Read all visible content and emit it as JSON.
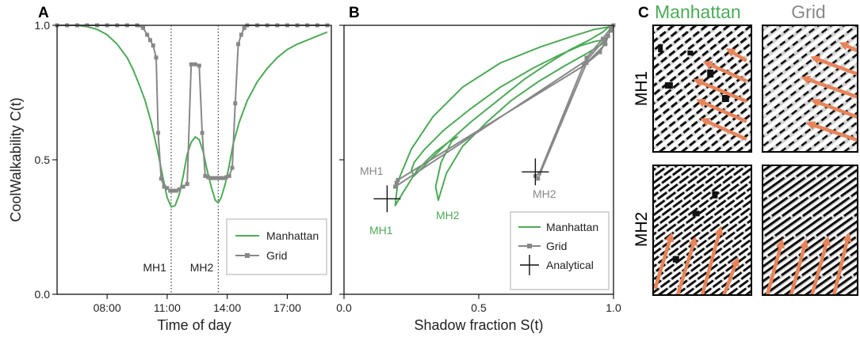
{
  "panels": {
    "a": "A",
    "b": "B",
    "c": "C"
  },
  "colors": {
    "manhattan": "#4daa57",
    "grid": "#888888",
    "analytical": "#111111",
    "arrow": "#e8845a",
    "street": "#d2d2d2",
    "building": "#111111"
  },
  "chart_data": [
    {
      "id": "A",
      "type": "line",
      "xlabel": "Time of day",
      "ylabel": "CoolWalkability C(t)",
      "xlim": [
        5.5,
        19.2
      ],
      "ylim": [
        0.0,
        1.0
      ],
      "xticks": [
        8,
        11,
        14,
        17
      ],
      "xtick_labels": [
        "08:00",
        "11:00",
        "14:00",
        "17:00"
      ],
      "yticks": [
        0.0,
        0.5,
        1.0
      ],
      "ytick_labels": [
        "0.0",
        "0.5",
        "1.0"
      ],
      "vlines": [
        {
          "x": 11.2,
          "label": "MH1"
        },
        {
          "x": 13.55,
          "label": "MH2"
        }
      ],
      "legend": {
        "position": "lower-right",
        "entries": [
          "Manhattan",
          "Grid"
        ]
      },
      "series": [
        {
          "name": "Manhattan",
          "marker": "none",
          "x": [
            5.5,
            6.0,
            6.5,
            7.0,
            7.5,
            8.0,
            8.5,
            9.0,
            9.3,
            9.6,
            9.9,
            10.2,
            10.5,
            10.8,
            11.0,
            11.2,
            11.4,
            11.6,
            11.8,
            12.0,
            12.2,
            12.4,
            12.6,
            12.8,
            13.0,
            13.2,
            13.4,
            13.55,
            13.7,
            13.9,
            14.1,
            14.3,
            14.6,
            15.0,
            15.5,
            16.0,
            16.5,
            17.0,
            17.5,
            18.0,
            18.5,
            19.0
          ],
          "y": [
            1.0,
            1.0,
            1.0,
            0.995,
            0.985,
            0.965,
            0.93,
            0.88,
            0.835,
            0.78,
            0.72,
            0.64,
            0.54,
            0.43,
            0.36,
            0.325,
            0.33,
            0.37,
            0.44,
            0.52,
            0.565,
            0.585,
            0.575,
            0.53,
            0.46,
            0.4,
            0.35,
            0.34,
            0.36,
            0.41,
            0.48,
            0.56,
            0.64,
            0.72,
            0.79,
            0.84,
            0.88,
            0.91,
            0.93,
            0.945,
            0.96,
            0.975
          ]
        },
        {
          "name": "Grid",
          "marker": "square",
          "x": [
            5.5,
            6.0,
            6.5,
            7.0,
            7.5,
            8.0,
            8.5,
            9.0,
            9.5,
            9.8,
            10.0,
            10.15,
            10.3,
            10.45,
            10.55,
            10.7,
            10.85,
            11.0,
            11.15,
            11.3,
            11.45,
            11.6,
            11.8,
            12.0,
            12.2,
            12.4,
            12.6,
            12.75,
            12.9,
            13.05,
            13.2,
            13.35,
            13.5,
            13.65,
            13.8,
            13.95,
            14.1,
            14.25,
            14.4,
            14.55,
            14.7,
            14.85,
            15.0,
            15.5,
            16.0,
            16.5,
            17.0,
            17.5,
            18.0,
            18.5,
            19.0
          ],
          "y": [
            1.0,
            1.0,
            1.0,
            1.0,
            1.0,
            1.0,
            1.0,
            1.0,
            1.0,
            0.99,
            0.965,
            0.945,
            0.925,
            0.88,
            0.6,
            0.43,
            0.4,
            0.395,
            0.385,
            0.385,
            0.385,
            0.39,
            0.4,
            0.41,
            0.855,
            0.855,
            0.85,
            0.6,
            0.44,
            0.435,
            0.432,
            0.432,
            0.432,
            0.432,
            0.432,
            0.435,
            0.44,
            0.47,
            0.71,
            0.93,
            0.965,
            0.99,
            1.0,
            1.0,
            1.0,
            1.0,
            1.0,
            1.0,
            1.0,
            1.0,
            1.0
          ]
        }
      ]
    },
    {
      "id": "B",
      "type": "line",
      "xlabel": "Shadow fraction S(t)",
      "ylabel": "",
      "xlim": [
        0.0,
        1.0
      ],
      "ylim": [
        0.0,
        1.0
      ],
      "xticks": [
        0.0,
        0.5,
        1.0
      ],
      "xtick_labels": [
        "0.0",
        "0.5",
        "1.0"
      ],
      "yticks": [
        0.0,
        0.5,
        1.0
      ],
      "legend": {
        "position": "lower-right",
        "entries": [
          "Manhattan",
          "Grid",
          "Analytical"
        ]
      },
      "annotations": [
        {
          "text": "MH1",
          "series": "Grid"
        },
        {
          "text": "MH1",
          "series": "Manhattan"
        },
        {
          "text": "MH2",
          "series": "Manhattan"
        },
        {
          "text": "MH2",
          "series": "Grid"
        }
      ],
      "series": [
        {
          "name": "Manhattan",
          "marker": "none",
          "x": [
            0.99,
            0.93,
            0.85,
            0.73,
            0.58,
            0.44,
            0.33,
            0.25,
            0.2,
            0.19,
            0.22,
            0.27,
            0.34,
            0.4,
            0.42,
            0.4,
            0.36,
            0.34,
            0.35,
            0.38,
            0.44,
            0.53,
            0.62,
            0.72,
            0.82,
            0.9,
            0.95,
            0.97,
            0.96,
            0.93,
            0.88,
            0.8,
            0.7,
            0.58,
            0.47,
            0.37,
            0.3,
            0.26,
            0.25,
            0.26,
            0.3,
            0.37,
            0.47,
            0.57,
            0.67,
            0.76,
            0.84,
            0.91,
            0.96,
            0.99
          ],
          "y": [
            0.995,
            0.985,
            0.96,
            0.92,
            0.86,
            0.77,
            0.66,
            0.54,
            0.42,
            0.33,
            0.38,
            0.46,
            0.53,
            0.575,
            0.585,
            0.57,
            0.49,
            0.4,
            0.35,
            0.45,
            0.55,
            0.64,
            0.72,
            0.79,
            0.85,
            0.895,
            0.925,
            0.94,
            0.945,
            0.94,
            0.925,
            0.89,
            0.84,
            0.77,
            0.69,
            0.61,
            0.54,
            0.49,
            0.46,
            0.44,
            0.48,
            0.55,
            0.64,
            0.72,
            0.8,
            0.86,
            0.91,
            0.945,
            0.975,
            1.0
          ]
        },
        {
          "name": "Grid",
          "marker": "square",
          "x": [
            1.0,
            0.99,
            0.97,
            0.9,
            0.19,
            0.195,
            0.2,
            0.89,
            0.95,
            0.98,
            0.97,
            0.9,
            0.72,
            0.71,
            0.725,
            0.9,
            0.96,
            0.99,
            1.0
          ],
          "y": [
            1.0,
            0.98,
            0.95,
            0.87,
            0.4,
            0.415,
            0.425,
            0.85,
            0.9,
            0.96,
            0.93,
            0.86,
            0.43,
            0.44,
            0.45,
            0.88,
            0.95,
            0.99,
            1.0
          ]
        },
        {
          "name": "Analytical",
          "marker": "cross",
          "x": [
            0.16,
            0.71
          ],
          "y": [
            0.355,
            0.455
          ]
        }
      ]
    }
  ],
  "panel_c": {
    "columns": [
      "Manhattan",
      "Grid"
    ],
    "rows": [
      "MH1",
      "MH2"
    ]
  }
}
